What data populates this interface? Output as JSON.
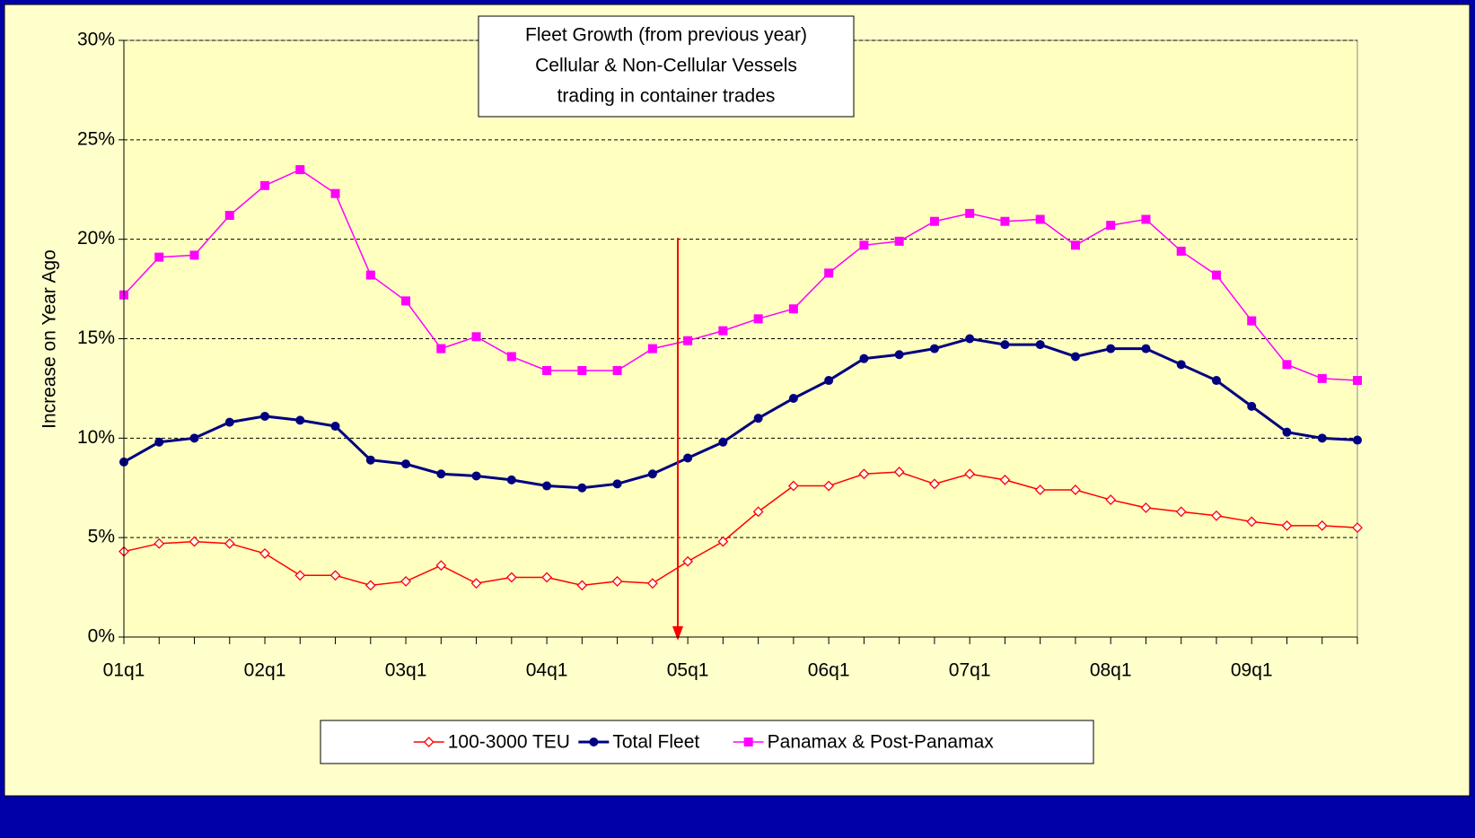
{
  "chart_data": {
    "type": "line",
    "title": [
      "Fleet Growth (from previous year)",
      "Cellular & Non-Cellular Vessels",
      "trading in container trades"
    ],
    "y_label": "Increase on Year Ago",
    "categories": [
      "01q1",
      null,
      null,
      null,
      "02q1",
      null,
      null,
      null,
      "03q1",
      null,
      null,
      null,
      "04q1",
      null,
      null,
      null,
      "05q1",
      null,
      null,
      null,
      "06q1",
      null,
      null,
      null,
      "07q1",
      null,
      null,
      null,
      "08q1",
      null,
      null,
      null,
      "09q1",
      null,
      null,
      null
    ],
    "series": [
      {
        "name": "100-3000 TEU",
        "color": "#ff0000",
        "marker": "diamond-open",
        "values": [
          4.3,
          4.7,
          4.8,
          4.7,
          4.2,
          3.1,
          3.1,
          2.6,
          2.8,
          3.6,
          2.7,
          3.0,
          3.0,
          2.6,
          2.8,
          2.7,
          3.8,
          4.8,
          6.3,
          7.6,
          7.6,
          8.2,
          8.3,
          7.7,
          8.2,
          7.9,
          7.4,
          7.4,
          6.9,
          6.5,
          6.3,
          6.1,
          5.8,
          5.6,
          5.6,
          5.5
        ]
      },
      {
        "name": "Total Fleet",
        "color": "#000080",
        "marker": "circle",
        "values": [
          8.8,
          9.8,
          10.0,
          10.8,
          11.1,
          10.9,
          10.6,
          8.9,
          8.7,
          8.2,
          8.1,
          7.9,
          7.6,
          7.5,
          7.7,
          8.2,
          9.0,
          9.8,
          11.0,
          12.0,
          12.9,
          14.0,
          14.2,
          14.5,
          15.0,
          14.7,
          14.7,
          14.1,
          14.5,
          14.5,
          13.7,
          12.9,
          11.6,
          10.3,
          10.0,
          9.9
        ]
      },
      {
        "name": "Panamax & Post-Panamax",
        "color": "#ff00ff",
        "marker": "square",
        "values": [
          17.2,
          19.1,
          19.2,
          21.2,
          22.7,
          23.5,
          22.3,
          18.2,
          16.9,
          14.5,
          15.1,
          14.1,
          13.4,
          13.4,
          13.4,
          14.5,
          14.9,
          15.4,
          16.0,
          16.5,
          18.3,
          19.7,
          19.9,
          20.9,
          21.3,
          20.9,
          21.0,
          19.7,
          20.7,
          21.0,
          19.4,
          18.2,
          15.9,
          13.7,
          13.0,
          12.9
        ]
      }
    ],
    "ylim": [
      0,
      30
    ],
    "yticks": [
      {
        "value": 0,
        "label": "0%"
      },
      {
        "value": 5,
        "label": "5%"
      },
      {
        "value": 10,
        "label": "10%"
      },
      {
        "value": 15,
        "label": "15%"
      },
      {
        "value": 20,
        "label": "20%"
      },
      {
        "value": 25,
        "label": "25%"
      },
      {
        "value": 30,
        "label": "30%"
      }
    ],
    "grid": true,
    "legend": "bottom"
  }
}
